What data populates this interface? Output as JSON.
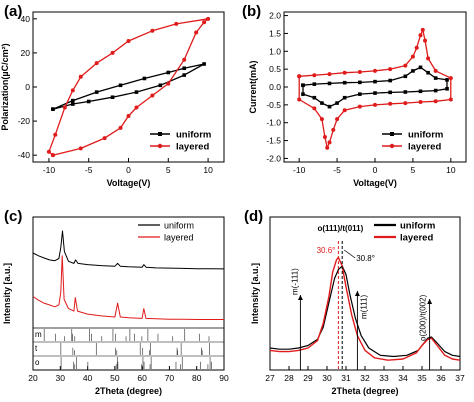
{
  "chart_data": [
    {
      "panel_label": "(a)",
      "type": "line",
      "xlabel": "Voltage(V)",
      "ylabel": "Polarization(µC/cm²)",
      "xlim": [
        -12,
        12
      ],
      "ylim": [
        -44,
        44
      ],
      "xticks": [
        -10,
        -5,
        0,
        5,
        10
      ],
      "yticks": [
        -40,
        -20,
        0,
        20,
        40
      ],
      "legend_position": "bottom-right",
      "series": [
        {
          "name": "uniform",
          "color": "#000000",
          "marker": "square",
          "x": [
            -9.5,
            -7,
            -4,
            -1,
            2,
            5,
            7,
            9.5,
            7,
            4,
            1,
            -2,
            -5,
            -7,
            -9.5
          ],
          "y": [
            -13,
            -8,
            -3,
            1,
            5,
            8.5,
            11,
            13.5,
            7,
            1,
            -3,
            -6,
            -8.5,
            -10,
            -13
          ]
        },
        {
          "name": "layered",
          "color": "#e01b1b",
          "marker": "circle",
          "x": [
            -9.5,
            -6,
            -3,
            -1,
            0,
            1,
            3,
            5,
            7,
            8.5,
            9.5,
            10,
            6,
            3,
            0,
            -2,
            -4,
            -6,
            -7,
            -8,
            -9.2,
            -10,
            -9.5
          ],
          "y": [
            -40,
            -36,
            -30,
            -24,
            -17,
            -12,
            -5,
            2,
            16,
            32,
            38,
            40,
            37,
            33,
            27,
            20,
            14,
            6,
            -2,
            -12,
            -28,
            -38,
            -40
          ]
        }
      ]
    },
    {
      "panel_label": "(b)",
      "type": "line",
      "xlabel": "Voltage(V)",
      "ylabel": "Current(mA)",
      "xlim": [
        -12,
        12
      ],
      "ylim": [
        -2.1,
        2.1
      ],
      "xticks": [
        -10,
        -5,
        0,
        5,
        10
      ],
      "yticks": [
        -2.0,
        -1.5,
        -1.0,
        -0.5,
        0.0,
        0.5,
        1.0,
        1.5,
        2.0
      ],
      "legend_position": "bottom-right",
      "series": [
        {
          "name": "uniform",
          "color": "#000000",
          "marker": "square",
          "x": [
            -9.5,
            -8,
            -6,
            -4,
            -2,
            0,
            2,
            4,
            5,
            6,
            7,
            8,
            9.5,
            9.5,
            8,
            6,
            4,
            2,
            0,
            -2,
            -4,
            -5,
            -6,
            -7,
            -8,
            -9.5,
            -9.5
          ],
          "y": [
            0.05,
            0.08,
            0.1,
            0.12,
            0.13,
            0.15,
            0.18,
            0.3,
            0.45,
            0.55,
            0.4,
            0.25,
            0.2,
            -0.05,
            -0.1,
            -0.12,
            -0.14,
            -0.15,
            -0.17,
            -0.2,
            -0.3,
            -0.45,
            -0.55,
            -0.45,
            -0.3,
            -0.2,
            0.05
          ]
        },
        {
          "name": "layered",
          "color": "#e01b1b",
          "marker": "circle",
          "x": [
            -10,
            -8,
            -6,
            -4,
            -2,
            0,
            2,
            4,
            5,
            5.5,
            6,
            6.3,
            6.6,
            7,
            8,
            10,
            10,
            8,
            6,
            4,
            2,
            0,
            -2,
            -4,
            -5,
            -5.5,
            -6,
            -6.3,
            -6.6,
            -7,
            -8,
            -10,
            -10
          ],
          "y": [
            0.3,
            0.33,
            0.36,
            0.4,
            0.42,
            0.45,
            0.5,
            0.6,
            0.85,
            1.1,
            1.45,
            1.6,
            1.3,
            0.8,
            0.45,
            0.25,
            -0.35,
            -0.4,
            -0.42,
            -0.45,
            -0.47,
            -0.5,
            -0.55,
            -0.65,
            -0.9,
            -1.2,
            -1.55,
            -1.7,
            -1.4,
            -0.9,
            -0.6,
            -0.35,
            0.3
          ]
        }
      ]
    },
    {
      "panel_label": "(c)",
      "type": "line",
      "xlabel": "2Theta (degree)",
      "ylabel": "Intensity [a.u.]",
      "xlim": [
        20,
        90
      ],
      "xticks": [
        20,
        30,
        40,
        50,
        60,
        70,
        80,
        90
      ],
      "legend_position": "top-right",
      "series": [
        {
          "name": "uniform",
          "color": "#000000",
          "x": [
            20,
            22,
            24,
            26,
            28,
            29.5,
            30.2,
            30.8,
            31.5,
            33,
            35,
            35.6,
            36.5,
            40,
            45,
            50,
            51,
            52,
            55,
            60,
            60.6,
            61.5,
            65,
            70,
            75,
            80,
            85,
            90
          ],
          "y": [
            0.8,
            0.7,
            0.62,
            0.55,
            0.52,
            0.6,
            1.0,
            1.6,
            0.85,
            0.5,
            0.42,
            0.55,
            0.42,
            0.38,
            0.34,
            0.32,
            0.42,
            0.32,
            0.3,
            0.28,
            0.38,
            0.28,
            0.26,
            0.25,
            0.24,
            0.23,
            0.23,
            0.22
          ]
        },
        {
          "name": "layered",
          "color": "#e01b1b",
          "x": [
            20,
            22,
            24,
            26,
            28,
            29.5,
            30.2,
            30.7,
            31.4,
            33,
            35,
            35.5,
            36.3,
            40,
            45,
            50,
            51,
            52,
            55,
            60,
            60.6,
            61.4,
            65,
            70,
            75,
            80,
            85,
            90
          ],
          "y": [
            0.78,
            0.68,
            0.6,
            0.55,
            0.5,
            0.55,
            0.9,
            1.9,
            0.7,
            0.45,
            0.38,
            0.75,
            0.38,
            0.3,
            0.25,
            0.22,
            0.6,
            0.22,
            0.2,
            0.18,
            0.45,
            0.18,
            0.17,
            0.16,
            0.16,
            0.15,
            0.15,
            0.15
          ]
        }
      ],
      "reference_rows": [
        {
          "label": "m",
          "positions": [
            24.1,
            28.2,
            31.5,
            34.2,
            34.5,
            35.3,
            40.7,
            41.4,
            45.2,
            49.3,
            50.2,
            54.1,
            55.5,
            57.2,
            59.9,
            62.1,
            65.8,
            71.2,
            75.6,
            81.0,
            84.5
          ]
        },
        {
          "label": "t",
          "positions": [
            30.2,
            34.6,
            35.2,
            43.2,
            50.2,
            50.7,
            59.3,
            60.2,
            62.7,
            63.0,
            72.8,
            73.0,
            74.3,
            81.7,
            82.0,
            84.7
          ]
        },
        {
          "label": "o",
          "positions": [
            30.3,
            34.9,
            35.3,
            36.0,
            40.1,
            50.5,
            50.9,
            51.1,
            59.8,
            60.3,
            60.7,
            62.9,
            63.3,
            72.4,
            74.0,
            74.7,
            81.4,
            84.1,
            84.9,
            85.4
          ]
        }
      ]
    },
    {
      "panel_label": "(d)",
      "type": "line",
      "xlabel": "2Theta (degree)",
      "ylabel": "Intensity [a.u.]",
      "xlim": [
        27,
        37
      ],
      "xticks": [
        27,
        28,
        29,
        30,
        31,
        32,
        33,
        34,
        35,
        36,
        37
      ],
      "legend_position": "top-right",
      "series": [
        {
          "name": "uniform",
          "color": "#000000",
          "peak": 30.8,
          "x": [
            27,
            27.5,
            28,
            28.5,
            29,
            29.5,
            29.8,
            30.1,
            30.4,
            30.6,
            30.8,
            31.0,
            31.2,
            31.5,
            31.8,
            32.2,
            32.8,
            33.5,
            34.2,
            34.8,
            35.1,
            35.3,
            35.5,
            35.8,
            36.2,
            36.6,
            37
          ],
          "y": [
            0.18,
            0.17,
            0.17,
            0.18,
            0.2,
            0.25,
            0.35,
            0.55,
            0.75,
            0.82,
            0.85,
            0.78,
            0.62,
            0.42,
            0.28,
            0.18,
            0.12,
            0.11,
            0.12,
            0.16,
            0.22,
            0.26,
            0.27,
            0.22,
            0.15,
            0.12,
            0.11
          ]
        },
        {
          "name": "layered",
          "color": "#e01b1b",
          "peak": 30.6,
          "x": [
            27,
            27.5,
            28,
            28.5,
            29,
            29.5,
            29.8,
            30.1,
            30.3,
            30.5,
            30.6,
            30.8,
            31.0,
            31.3,
            31.6,
            32.0,
            32.5,
            33.2,
            34.0,
            34.7,
            35.0,
            35.3,
            35.5,
            35.8,
            36.2,
            36.6,
            37
          ],
          "y": [
            0.16,
            0.15,
            0.15,
            0.16,
            0.18,
            0.24,
            0.38,
            0.6,
            0.8,
            0.9,
            0.92,
            0.85,
            0.68,
            0.45,
            0.28,
            0.16,
            0.1,
            0.08,
            0.09,
            0.14,
            0.2,
            0.25,
            0.26,
            0.2,
            0.12,
            0.09,
            0.08
          ]
        }
      ],
      "annotations": [
        {
          "text": "o(111)/t(011)",
          "x": 30.6
        },
        {
          "text": "30.6°",
          "x": 30.6,
          "color": "#e01b1b"
        },
        {
          "text": "30.8°",
          "x": 30.8,
          "color": "#000000"
        },
        {
          "text": "m(-111)",
          "x": 28.6
        },
        {
          "text": "m(111)",
          "x": 31.6
        },
        {
          "text": "o(200)/t(002)",
          "x": 35.4
        }
      ]
    }
  ]
}
